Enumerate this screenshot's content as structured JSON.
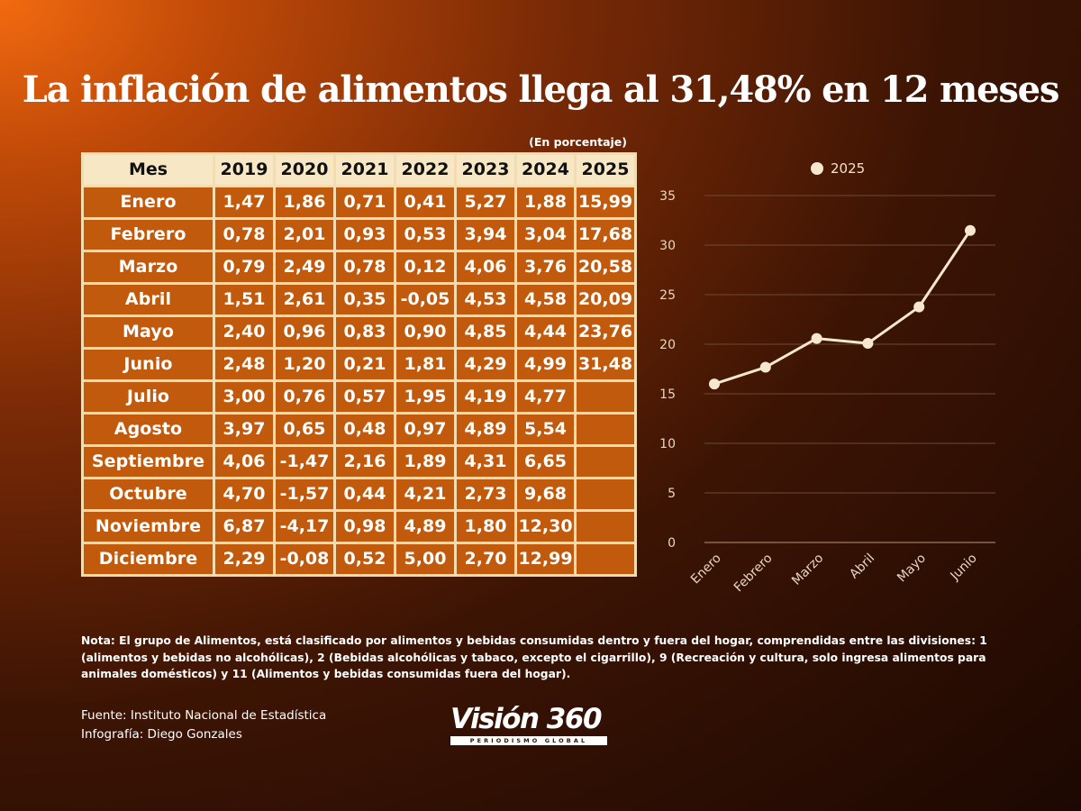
{
  "title": "La inflación de alimentos llega al 31,48% en 12 meses",
  "unit_note": "(En porcentaje)",
  "table": {
    "headers": [
      "Mes",
      "2019",
      "2020",
      "2021",
      "2022",
      "2023",
      "2024",
      "2025"
    ],
    "rows": [
      [
        "Enero",
        "1,47",
        "1,86",
        "0,71",
        "0,41",
        "5,27",
        "1,88",
        "15,99"
      ],
      [
        "Febrero",
        "0,78",
        "2,01",
        "0,93",
        "0,53",
        "3,94",
        "3,04",
        "17,68"
      ],
      [
        "Marzo",
        "0,79",
        "2,49",
        "0,78",
        "0,12",
        "4,06",
        "3,76",
        "20,58"
      ],
      [
        "Abril",
        "1,51",
        "2,61",
        "0,35",
        "-0,05",
        "4,53",
        "4,58",
        "20,09"
      ],
      [
        "Mayo",
        "2,40",
        "0,96",
        "0,83",
        "0,90",
        "4,85",
        "4,44",
        "23,76"
      ],
      [
        "Junio",
        "2,48",
        "1,20",
        "0,21",
        "1,81",
        "4,29",
        "4,99",
        "31,48"
      ],
      [
        "Julio",
        "3,00",
        "0,76",
        "0,57",
        "1,95",
        "4,19",
        "4,77",
        ""
      ],
      [
        "Agosto",
        "3,97",
        "0,65",
        "0,48",
        "0,97",
        "4,89",
        "5,54",
        ""
      ],
      [
        "Septiembre",
        "4,06",
        "-1,47",
        "2,16",
        "1,89",
        "4,31",
        "6,65",
        ""
      ],
      [
        "Octubre",
        "4,70",
        "-1,57",
        "0,44",
        "4,21",
        "2,73",
        "9,68",
        ""
      ],
      [
        "Noviembre",
        "6,87",
        "-4,17",
        "0,98",
        "4,89",
        "1,80",
        "12,30",
        ""
      ],
      [
        "Diciembre",
        "2,29",
        "-0,08",
        "0,52",
        "5,00",
        "2,70",
        "12,99",
        ""
      ]
    ]
  },
  "chart_data": {
    "type": "line",
    "categories": [
      "Enero",
      "Febrero",
      "Marzo",
      "Abril",
      "Mayo",
      "Junio"
    ],
    "series": [
      {
        "name": "2025",
        "values": [
          15.99,
          17.68,
          20.58,
          20.09,
          23.76,
          31.48
        ]
      }
    ],
    "yticks": [
      0,
      5,
      10,
      15,
      20,
      25,
      30,
      35
    ],
    "ylim": [
      0,
      35
    ],
    "grid": true,
    "legend_position": "top-center",
    "line_color": "#f6e8cf"
  },
  "note": "Nota: El grupo de Alimentos, está clasificado por alimentos y bebidas consumidas dentro y fuera del hogar, comprendidas entre las divisiones: 1 (alimentos y bebidas no alcohólicas), 2 (Bebidas alcohólicas y tabaco, excepto el cigarrillo), 9 (Recreación y cultura, solo ingresa alimentos para animales domésticos) y 11 (Alimentos y bebidas consumidas fuera del hogar).",
  "credits": {
    "source": "Fuente: Instituto Nacional de Estadística",
    "infographic": "Infografía: Diego Gonzales"
  },
  "logo": {
    "wordmark": "Visión 360",
    "tagline": "PERIODISMO GLOBAL"
  }
}
